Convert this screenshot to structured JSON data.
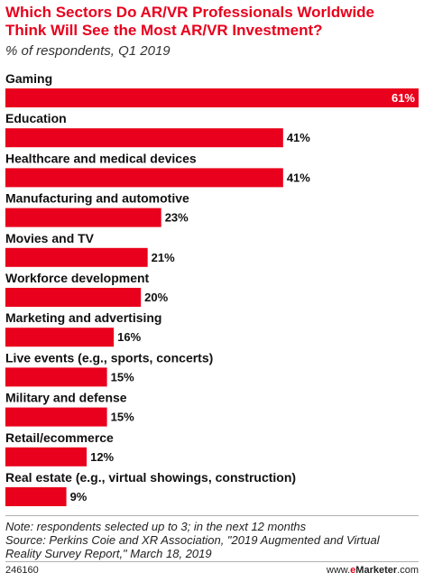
{
  "header": {
    "title": "Which Sectors Do AR/VR Professionals Worldwide Think Will See the Most AR/VR Investment?",
    "subtitle": "% of respondents, Q1 2019"
  },
  "chart_data": {
    "type": "bar",
    "orientation": "horizontal",
    "categories": [
      "Gaming",
      "Education",
      "Healthcare and medical devices",
      "Manufacturing and automotive",
      "Movies and TV",
      "Workforce development",
      "Marketing and advertising",
      "Live events (e.g., sports, concerts)",
      "Military and defense",
      "Retail/ecommerce",
      "Real estate (e.g., virtual showings, construction)"
    ],
    "values": [
      61,
      41,
      41,
      23,
      21,
      20,
      16,
      15,
      15,
      12,
      9
    ],
    "value_labels": [
      "61%",
      "41%",
      "41%",
      "23%",
      "21%",
      "20%",
      "16%",
      "15%",
      "15%",
      "12%",
      "9%"
    ],
    "xlim": [
      0,
      61
    ],
    "grid": false,
    "bar_color": "#e8001c"
  },
  "footer": {
    "note": "Note: respondents selected up to 3; in the next 12 months",
    "source_line1": "Source: Perkins Coie and XR Association, \"2019 Augmented and Virtual",
    "source_line2": "Reality Survey Report,\" March 18, 2019",
    "chart_id": "246160",
    "brand_prefix": "www.",
    "brand_e": "e",
    "brand_rest": "Marketer",
    "brand_suffix": ".com"
  },
  "colors": {
    "accent": "#e8001c",
    "text": "#222222"
  }
}
